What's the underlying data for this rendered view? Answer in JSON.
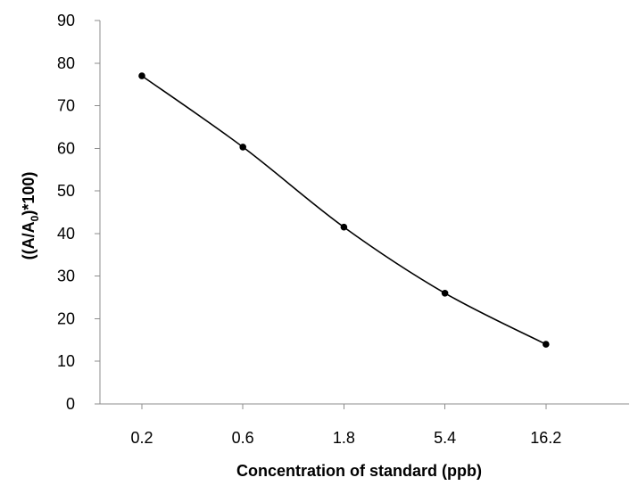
{
  "chart_data": {
    "type": "line",
    "categories": [
      "0.2",
      "0.6",
      "1.8",
      "5.4",
      "16.2"
    ],
    "series": [
      {
        "values": [
          77,
          60.3,
          41.5,
          26,
          14
        ]
      }
    ],
    "xlabel": "Concentration of standard (ppb)",
    "ylabel": {
      "prefix": "((A/A",
      "subscript": "0",
      "suffix": ")*100)"
    },
    "ylim": [
      0,
      90
    ],
    "yticks": [
      0,
      10,
      20,
      30,
      40,
      50,
      60,
      70,
      80,
      90
    ],
    "grid": false,
    "line_color": "#000000",
    "axis_color": "#8c8c8c",
    "smooth": true
  }
}
